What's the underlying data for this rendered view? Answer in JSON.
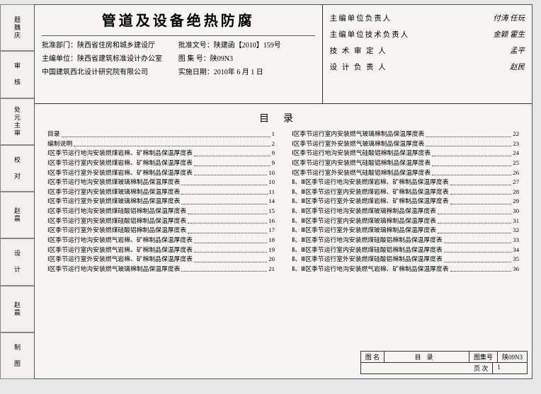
{
  "vtabs": [
    {
      "label": "题魏庆",
      "sig": ""
    },
    {
      "label": "审 核",
      "sig": ""
    },
    {
      "label": "处元主审",
      "sig": ""
    },
    {
      "label": "校 对",
      "sig": ""
    },
    {
      "label": "赵晨",
      "sig": ""
    },
    {
      "label": "设 计",
      "sig": ""
    },
    {
      "label": "赵晨",
      "sig": ""
    },
    {
      "label": "制 图",
      "sig": ""
    }
  ],
  "title": "管道及设备绝热防腐",
  "meta_left": [
    {
      "k": "批准部门：",
      "v": "陕西省住房和城乡建设厅"
    },
    {
      "k": "主编单位：",
      "v": "陕西省建筑标准设计办公室"
    },
    {
      "k": "",
      "v": "中国建筑西北设计研究院有限公司"
    }
  ],
  "meta_right": [
    {
      "k": "批准文号：",
      "v": "陕建函【2010】159号"
    },
    {
      "k": "图 集 号：",
      "v": "陕09N3"
    },
    {
      "k": "实施日期：",
      "v": "2010年 6 月 1 日"
    }
  ],
  "sigs": [
    {
      "label": "主编单位负责人",
      "val": "付涛 任玩"
    },
    {
      "label": "主编单位技术负责人",
      "val": "金颖 霍生"
    },
    {
      "label": "技 术 审 定 人",
      "val": "孟平"
    },
    {
      "label": "设 计 负 责 人",
      "val": "赵民"
    }
  ],
  "toc_title": "目录",
  "toc_left": [
    {
      "t": "目录",
      "p": "1"
    },
    {
      "t": "编制说明",
      "p": "2"
    },
    {
      "t": "Ⅰ区季节运行地沟安装燃煤岩棉、矿棉制品保温厚度表",
      "p": "9"
    },
    {
      "t": "Ⅰ区季节运行室内安装燃煤岩棉、矿棉制品保温厚度表",
      "p": "9"
    },
    {
      "t": "Ⅰ区季节运行室外安装燃煤岩棉、矿棉制品保温厚度表",
      "p": "10"
    },
    {
      "t": "Ⅰ区季节运行地沟安装燃煤玻璃棉制品保温厚度表",
      "p": "10"
    },
    {
      "t": "Ⅰ区季节运行室内安装燃煤玻璃棉制品保温厚度表",
      "p": "11"
    },
    {
      "t": "Ⅰ区季节运行室外安装燃煤玻璃棉制品保温厚度表",
      "p": "14"
    },
    {
      "t": "Ⅰ区季节运行地沟安装燃煤硅酸铝棉制品保温厚度表",
      "p": "15"
    },
    {
      "t": "Ⅰ区季节运行室内安装燃煤硅酸铝棉制品保温厚度表",
      "p": "16"
    },
    {
      "t": "Ⅰ区季节运行室外安装燃煤硅酸铝棉制品保温厚度表",
      "p": "17"
    },
    {
      "t": "Ⅰ区季节运行地沟安装燃气岩棉、矿棉制品保温厚度表",
      "p": "18"
    },
    {
      "t": "Ⅰ区季节运行室内安装燃气岩棉、矿棉制品保温厚度表",
      "p": "19"
    },
    {
      "t": "Ⅰ区季节运行室外安装燃气岩棉、矿棉制品保温厚度表",
      "p": "20"
    },
    {
      "t": "Ⅰ区季节运行地沟安装燃气玻璃棉制品保温厚度表",
      "p": "21"
    }
  ],
  "toc_right": [
    {
      "t": "Ⅰ区季节运行室内安装燃气玻璃棉制品保温厚度表",
      "p": "22"
    },
    {
      "t": "Ⅰ区季节运行室外安装燃气玻璃棉制品保温厚度表",
      "p": "23"
    },
    {
      "t": "Ⅰ区季节运行地沟安装燃气硅酸铝棉制品保温厚度表",
      "p": "24"
    },
    {
      "t": "Ⅰ区季节运行室内安装燃气硅酸铝棉制品保温厚度表",
      "p": "25"
    },
    {
      "t": "Ⅰ区季节运行室外安装燃气硅酸铝棉制品保温厚度表",
      "p": "26"
    },
    {
      "t": "Ⅱ、Ⅲ区季节运行地沟安装燃煤岩棉、矿棉制品保温厚度表",
      "p": "27"
    },
    {
      "t": "Ⅱ、Ⅲ区季节运行室内安装燃煤岩棉、矿棉制品保温厚度表",
      "p": "28"
    },
    {
      "t": "Ⅱ、Ⅲ区季节运行室外安装燃煤岩棉、矿棉制品保温厚度表",
      "p": "29"
    },
    {
      "t": "Ⅱ、Ⅲ区季节运行地沟安装燃煤玻璃棉制品保温厚度表",
      "p": "30"
    },
    {
      "t": "Ⅱ、Ⅲ区季节运行室内安装燃煤玻璃棉制品保温厚度表",
      "p": "31"
    },
    {
      "t": "Ⅱ、Ⅲ区季节运行室外安装燃煤玻璃棉制品保温厚度表",
      "p": "32"
    },
    {
      "t": "Ⅱ、Ⅲ区季节运行地沟安装燃煤硅酸铝棉制品保温厚度表",
      "p": "33"
    },
    {
      "t": "Ⅱ、Ⅲ区季节运行室内安装燃煤硅酸铝棉制品保温厚度表",
      "p": "34"
    },
    {
      "t": "Ⅱ、Ⅲ区季节运行室外安装燃煤硅酸铝棉制品保温厚度表",
      "p": "35"
    },
    {
      "t": "Ⅱ、Ⅲ区季节运行地沟安装燃气岩棉、矿棉制品保温厚度表",
      "p": "36"
    }
  ],
  "footer": {
    "name_label": "图 名",
    "name_val": "目录",
    "set_label": "图集号",
    "set_val": "陕09N3",
    "page_label": "页 次",
    "page_val": "1"
  }
}
